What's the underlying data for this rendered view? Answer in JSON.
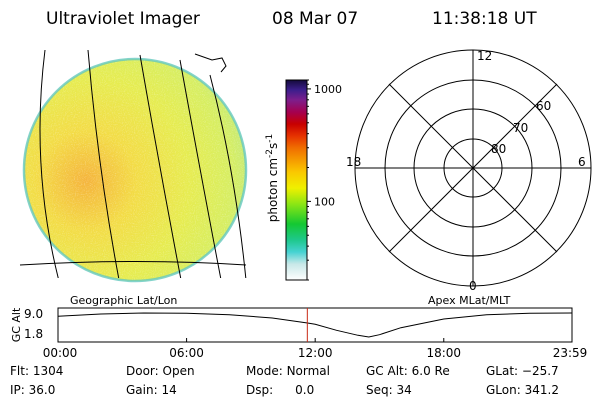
{
  "header": {
    "instrument": "Ultraviolet Imager",
    "date": "08 Mar 07",
    "time": "11:38:18 UT"
  },
  "colorbar": {
    "unit_label": "photon cm",
    "unit_exp1": "-2",
    "unit_mid": "s",
    "unit_exp2": "-1",
    "scale": "log",
    "range": [
      20,
      1200
    ],
    "ticks": [
      {
        "label": "1000",
        "value": 1000
      },
      {
        "label": "100",
        "value": 100
      }
    ],
    "stops": [
      {
        "v": 0.0,
        "c": "#ffffff"
      },
      {
        "v": 0.08,
        "c": "#c8e8e8"
      },
      {
        "v": 0.14,
        "c": "#46d2d2"
      },
      {
        "v": 0.2,
        "c": "#1ec88c"
      },
      {
        "v": 0.28,
        "c": "#14c832"
      },
      {
        "v": 0.38,
        "c": "#8ce614"
      },
      {
        "v": 0.46,
        "c": "#f0f000"
      },
      {
        "v": 0.54,
        "c": "#fac800"
      },
      {
        "v": 0.6,
        "c": "#f59b00"
      },
      {
        "v": 0.66,
        "c": "#f06e00"
      },
      {
        "v": 0.72,
        "c": "#e63200"
      },
      {
        "v": 0.78,
        "c": "#c80000"
      },
      {
        "v": 0.84,
        "c": "#a50050"
      },
      {
        "v": 0.9,
        "c": "#7d1e8c"
      },
      {
        "v": 0.95,
        "c": "#3c1e8c"
      },
      {
        "v": 1.0,
        "c": "#140a3c"
      }
    ]
  },
  "projection_labels": {
    "left": "Geographic Lat/Lon",
    "right": "Apex MLat/MLT"
  },
  "polar_plot": {
    "mlt_labels": [
      {
        "label": "12",
        "position": "top"
      },
      {
        "label": "18",
        "position": "left"
      },
      {
        "label": "6",
        "position": "right"
      },
      {
        "label": "0",
        "position": "bottom"
      }
    ],
    "mlat_labels": [
      {
        "label": "60",
        "lat": 60
      },
      {
        "label": "70",
        "lat": 70
      },
      {
        "label": "80",
        "lat": 80
      }
    ]
  },
  "altitude_plot": {
    "ylabel": "GC Alt",
    "y_ticks": [
      "9.0",
      "1.8"
    ],
    "x_ticks": [
      "00:00",
      "06:00",
      "12:00",
      "18:00",
      "23:59"
    ],
    "current_time_marker": "11:38",
    "series": {
      "x": [
        0,
        2,
        4,
        6,
        8,
        10,
        11.64,
        12,
        13,
        14,
        14.5,
        15,
        16,
        18,
        20,
        22,
        23.98
      ],
      "y": [
        8.0,
        8.7,
        9.0,
        8.9,
        8.5,
        7.5,
        6.0,
        5.6,
        3.8,
        2.3,
        1.8,
        2.5,
        4.6,
        7.2,
        8.5,
        8.9,
        9.0
      ]
    }
  },
  "status": {
    "flt": {
      "label": "Flt:",
      "value": "1304"
    },
    "ip": {
      "label": "IP:",
      "value": "36.0"
    },
    "door": {
      "label": "Door:",
      "value": "Open"
    },
    "gain": {
      "label": "Gain:",
      "value": "14"
    },
    "mode": {
      "label": "Mode:",
      "value": "Normal"
    },
    "dsp": {
      "label": "Dsp:",
      "value": "0.0"
    },
    "gcalt": {
      "label": "GC Alt:",
      "value": "6.0 Re"
    },
    "seq": {
      "label": "Seq:",
      "value": "34"
    },
    "glat": {
      "label": "GLat:",
      "value": "−25.7"
    },
    "glon": {
      "label": "GLon:",
      "value": "341.2"
    }
  },
  "colors": {
    "grid": "#000000",
    "time_marker": "#c82814",
    "disk_edge": "#64c8be"
  }
}
